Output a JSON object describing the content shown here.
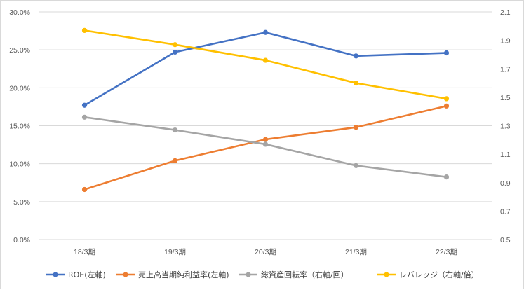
{
  "chart_data": {
    "type": "line",
    "categories": [
      "18/3期",
      "19/3期",
      "20/3期",
      "21/3期",
      "22/3期"
    ],
    "y_left": {
      "min": 0,
      "max": 30,
      "ticks": [
        "0.0%",
        "5.0%",
        "10.0%",
        "15.0%",
        "20.0%",
        "25.0%",
        "30.0%"
      ]
    },
    "y_right": {
      "min": 0.5,
      "max": 2.1,
      "ticks": [
        "0.5",
        "0.7",
        "0.9",
        "1.1",
        "1.3",
        "1.5",
        "1.7",
        "1.9",
        "2.1"
      ]
    },
    "grid": true,
    "legend_position": "bottom",
    "series": [
      {
        "name": "ROE(左軸)",
        "axis": "left",
        "color": "#4472C4",
        "values": [
          17.7,
          24.7,
          27.3,
          24.2,
          24.6
        ]
      },
      {
        "name": "売上高当期純利益率(左軸)",
        "axis": "left",
        "color": "#ED7D31",
        "values": [
          6.6,
          10.4,
          13.2,
          14.8,
          17.6
        ]
      },
      {
        "name": "総資産回転率（右軸/回）",
        "axis": "right",
        "color": "#A5A5A5",
        "values": [
          1.36,
          1.27,
          1.17,
          1.02,
          0.94
        ]
      },
      {
        "name": "レバレッジ（右軸/倍）",
        "axis": "right",
        "color": "#FFC000",
        "values": [
          1.97,
          1.87,
          1.76,
          1.6,
          1.49
        ]
      }
    ]
  }
}
